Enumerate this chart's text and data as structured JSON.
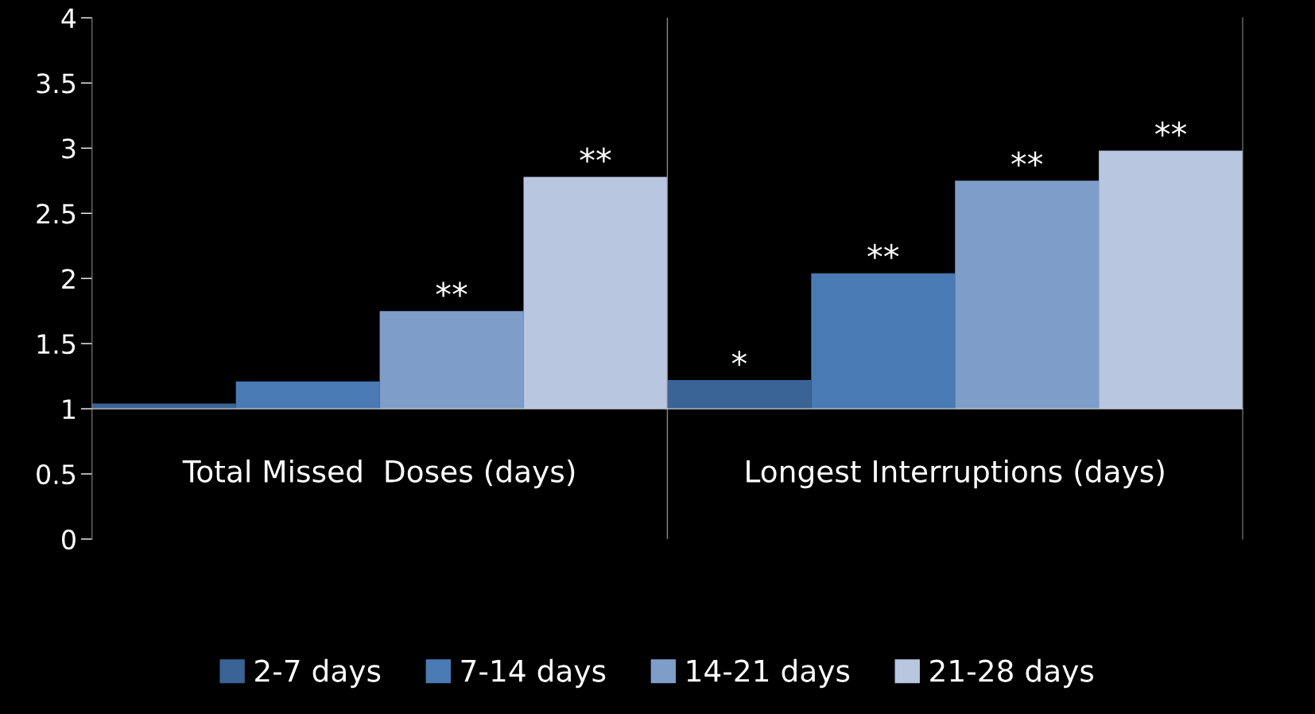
{
  "chart_data": {
    "type": "bar",
    "categories": [
      "Total Missed  Doses (days)",
      "Longest Interruptions (days)"
    ],
    "series": [
      {
        "name": "2-7 days",
        "color": "#3a6396",
        "base": [
          1,
          1
        ],
        "values": [
          0.04,
          0.22
        ],
        "value_labels": [
          null,
          "*"
        ]
      },
      {
        "name": "7-14 days",
        "color": "#4a7ab3",
        "base": [
          1,
          1
        ],
        "values": [
          0.21,
          1.04
        ],
        "value_labels": [
          null,
          "**"
        ]
      },
      {
        "name": "14-21 days",
        "color": "#7f9dc9",
        "base": [
          1,
          1
        ],
        "values": [
          0.75,
          1.75
        ],
        "value_labels": [
          "**",
          "**"
        ]
      },
      {
        "name": "21-28 days",
        "color": "#b8c6e0",
        "base": [
          1,
          1
        ],
        "values": [
          1.78,
          1.98
        ],
        "value_labels": [
          "**",
          "**"
        ]
      }
    ],
    "ylim": [
      0,
      4
    ],
    "yticks": [
      0,
      0.5,
      1,
      1.5,
      2,
      2.5,
      3,
      3.5,
      4
    ],
    "grid": false,
    "legend": "bottom"
  }
}
